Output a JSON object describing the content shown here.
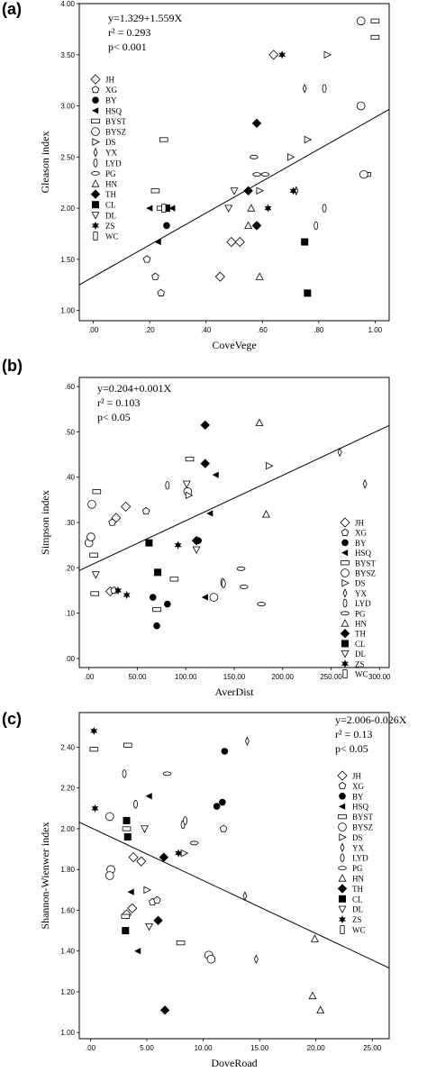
{
  "legend_labels": [
    "JH",
    "XG",
    "BY",
    "HSQ",
    "BYST",
    "BYSZ",
    "DS",
    "YX",
    "LYD",
    "PG",
    "HN",
    "TH",
    "CL",
    "DL",
    "ZS",
    "WC"
  ],
  "chart_data": [
    {
      "panel": "(a)",
      "type": "scatter",
      "xlabel": "CoveVege",
      "ylabel": "Gleason index",
      "xlim": [
        -0.05,
        1.05
      ],
      "ylim": [
        0.9,
        4.0
      ],
      "xticks": [
        0,
        0.2,
        0.4,
        0.6,
        0.8,
        1.0
      ],
      "xtick_labels": [
        ".00",
        ".20",
        ".40",
        ".60",
        ".80",
        "1.00"
      ],
      "yticks": [
        1.0,
        1.5,
        2.0,
        2.5,
        3.0,
        3.5,
        4.0
      ],
      "ytick_labels": [
        "1.00",
        "1.50",
        "2.00",
        "2.50",
        "3.00",
        "3.50",
        "4.00"
      ],
      "equation": [
        "y=1.329+1.559X",
        "r² = 0.293",
        "p< 0.001"
      ],
      "fit": {
        "intercept": 1.329,
        "slope": 1.559
      },
      "legend_position": "left",
      "points": [
        {
          "s": "JH",
          "x": 0.45,
          "y": 1.33
        },
        {
          "s": "JH",
          "x": 0.49,
          "y": 1.67
        },
        {
          "s": "JH",
          "x": 0.52,
          "y": 1.67
        },
        {
          "s": "JH",
          "x": 0.64,
          "y": 3.5
        },
        {
          "s": "XG",
          "x": 0.19,
          "y": 1.5
        },
        {
          "s": "XG",
          "x": 0.22,
          "y": 1.33
        },
        {
          "s": "XG",
          "x": 0.24,
          "y": 1.17
        },
        {
          "s": "BY",
          "x": 0.26,
          "y": 1.83
        },
        {
          "s": "BY",
          "x": 0.58,
          "y": 1.83
        },
        {
          "s": "HSQ",
          "x": 0.2,
          "y": 2.0
        },
        {
          "s": "HSQ",
          "x": 0.23,
          "y": 1.67
        },
        {
          "s": "HSQ",
          "x": 0.28,
          "y": 2.0
        },
        {
          "s": "BYST",
          "x": 0.22,
          "y": 2.17
        },
        {
          "s": "BYST",
          "x": 0.24,
          "y": 2.0
        },
        {
          "s": "BYST",
          "x": 0.25,
          "y": 2.67
        },
        {
          "s": "BYST",
          "x": 0.97,
          "y": 2.33
        },
        {
          "s": "BYST",
          "x": 1.0,
          "y": 3.67
        },
        {
          "s": "BYST",
          "x": 1.0,
          "y": 3.83
        },
        {
          "s": "BYSZ",
          "x": 0.95,
          "y": 3.83
        },
        {
          "s": "BYSZ",
          "x": 0.95,
          "y": 3.0
        },
        {
          "s": "BYSZ",
          "x": 0.96,
          "y": 2.33
        },
        {
          "s": "DS",
          "x": 0.59,
          "y": 2.17
        },
        {
          "s": "DS",
          "x": 0.7,
          "y": 2.5
        },
        {
          "s": "DS",
          "x": 0.76,
          "y": 2.67
        },
        {
          "s": "DS",
          "x": 0.83,
          "y": 3.5
        },
        {
          "s": "YX",
          "x": 0.72,
          "y": 2.17
        },
        {
          "s": "YX",
          "x": 0.75,
          "y": 3.17
        },
        {
          "s": "LYD",
          "x": 0.79,
          "y": 1.83
        },
        {
          "s": "LYD",
          "x": 0.82,
          "y": 2.0
        },
        {
          "s": "LYD",
          "x": 0.82,
          "y": 3.17
        },
        {
          "s": "PG",
          "x": 0.57,
          "y": 2.5
        },
        {
          "s": "PG",
          "x": 0.58,
          "y": 2.33
        },
        {
          "s": "PG",
          "x": 0.61,
          "y": 2.33
        },
        {
          "s": "HN",
          "x": 0.55,
          "y": 1.83
        },
        {
          "s": "HN",
          "x": 0.56,
          "y": 2.0
        },
        {
          "s": "HN",
          "x": 0.59,
          "y": 1.33
        },
        {
          "s": "TH",
          "x": 0.58,
          "y": 2.83
        },
        {
          "s": "TH",
          "x": 0.55,
          "y": 2.17
        },
        {
          "s": "TH",
          "x": 0.58,
          "y": 1.83
        },
        {
          "s": "CL",
          "x": 0.26,
          "y": 2.0
        },
        {
          "s": "CL",
          "x": 0.75,
          "y": 1.67
        },
        {
          "s": "CL",
          "x": 0.76,
          "y": 1.17
        },
        {
          "s": "DL",
          "x": 0.48,
          "y": 2.0
        },
        {
          "s": "DL",
          "x": 0.5,
          "y": 2.17
        },
        {
          "s": "ZS",
          "x": 0.67,
          "y": 3.5
        },
        {
          "s": "ZS",
          "x": 0.71,
          "y": 2.17
        },
        {
          "s": "ZS",
          "x": 0.62,
          "y": 2.0
        },
        {
          "s": "WC",
          "x": 0.25,
          "y": 2.0
        }
      ]
    },
    {
      "panel": "(b)",
      "type": "scatter",
      "xlabel": "AverDist",
      "ylabel": "Simpson index",
      "xlim": [
        -10,
        310
      ],
      "ylim": [
        -0.02,
        0.62
      ],
      "xticks": [
        0,
        50,
        100,
        150,
        200,
        250,
        300
      ],
      "xtick_labels": [
        ".00",
        "50.00",
        "100.00",
        "150.00",
        "200.00",
        "250.00",
        "300.00"
      ],
      "yticks": [
        0,
        0.1,
        0.2,
        0.3,
        0.4,
        0.5,
        0.6
      ],
      "ytick_labels": [
        ".00",
        ".10",
        ".20",
        ".30",
        ".40",
        ".50",
        ".60"
      ],
      "equation": [
        "y=0.204+0.001X",
        "r² = 0.103",
        "p< 0.05"
      ],
      "fit": {
        "intercept": 0.204,
        "slope": 0.001
      },
      "legend_position": "bottom-right",
      "points": [
        {
          "s": "JH",
          "x": 22,
          "y": 0.148
        },
        {
          "s": "JH",
          "x": 28,
          "y": 0.31
        },
        {
          "s": "JH",
          "x": 38,
          "y": 0.335
        },
        {
          "s": "XG",
          "x": 24,
          "y": 0.3
        },
        {
          "s": "XG",
          "x": 26,
          "y": 0.15
        },
        {
          "s": "XG",
          "x": 59,
          "y": 0.325
        },
        {
          "s": "BY",
          "x": 66,
          "y": 0.135
        },
        {
          "s": "BY",
          "x": 70,
          "y": 0.072
        },
        {
          "s": "BY",
          "x": 81,
          "y": 0.12
        },
        {
          "s": "BY",
          "x": 113,
          "y": 0.26
        },
        {
          "s": "HSQ",
          "x": 120,
          "y": 0.135
        },
        {
          "s": "HSQ",
          "x": 125,
          "y": 0.32
        },
        {
          "s": "HSQ",
          "x": 131,
          "y": 0.405
        },
        {
          "s": "BYST",
          "x": 5,
          "y": 0.228
        },
        {
          "s": "BYST",
          "x": 6,
          "y": 0.143
        },
        {
          "s": "BYST",
          "x": 8,
          "y": 0.368
        },
        {
          "s": "BYST",
          "x": 70,
          "y": 0.108
        },
        {
          "s": "BYST",
          "x": 88,
          "y": 0.175
        },
        {
          "s": "BYST",
          "x": 104,
          "y": 0.44
        },
        {
          "s": "BYSZ",
          "x": 0,
          "y": 0.255
        },
        {
          "s": "BYSZ",
          "x": 2,
          "y": 0.268
        },
        {
          "s": "BYSZ",
          "x": 3,
          "y": 0.34
        },
        {
          "s": "BYSZ",
          "x": 102,
          "y": 0.368
        },
        {
          "s": "BYSZ",
          "x": 129,
          "y": 0.135
        },
        {
          "s": "DS",
          "x": 103,
          "y": 0.36
        },
        {
          "s": "DS",
          "x": 186,
          "y": 0.425
        },
        {
          "s": "YX",
          "x": 259,
          "y": 0.455
        },
        {
          "s": "YX",
          "x": 285,
          "y": 0.385
        },
        {
          "s": "LYD",
          "x": 81,
          "y": 0.382
        },
        {
          "s": "LYD",
          "x": 138,
          "y": 0.168
        },
        {
          "s": "LYD",
          "x": 139,
          "y": 0.165
        },
        {
          "s": "PG",
          "x": 157,
          "y": 0.198
        },
        {
          "s": "PG",
          "x": 160,
          "y": 0.158
        },
        {
          "s": "PG",
          "x": 178,
          "y": 0.12
        },
        {
          "s": "HN",
          "x": 176,
          "y": 0.52
        },
        {
          "s": "HN",
          "x": 183,
          "y": 0.318
        },
        {
          "s": "TH",
          "x": 120,
          "y": 0.515
        },
        {
          "s": "TH",
          "x": 120,
          "y": 0.43
        },
        {
          "s": "TH",
          "x": 111,
          "y": 0.26
        },
        {
          "s": "CL",
          "x": 62,
          "y": 0.255
        },
        {
          "s": "CL",
          "x": 71,
          "y": 0.19
        },
        {
          "s": "DL",
          "x": 7,
          "y": 0.185
        },
        {
          "s": "DL",
          "x": 101,
          "y": 0.385
        },
        {
          "s": "DL",
          "x": 111,
          "y": 0.24
        },
        {
          "s": "ZS",
          "x": 30,
          "y": 0.15
        },
        {
          "s": "ZS",
          "x": 92,
          "y": 0.25
        },
        {
          "s": "ZS",
          "x": 39,
          "y": 0.14
        }
      ]
    },
    {
      "panel": "(c)",
      "type": "scatter",
      "xlabel": "DoveRoad",
      "ylabel": "Shannon-Wienwer index",
      "xlim": [
        -1,
        26.5
      ],
      "ylim": [
        0.97,
        2.57
      ],
      "xticks": [
        0,
        5,
        10,
        15,
        20,
        25
      ],
      "xtick_labels": [
        ".00",
        "5.00",
        "10.00",
        "15.00",
        "20.00",
        "25.00"
      ],
      "yticks": [
        1.0,
        1.2,
        1.4,
        1.6,
        1.8,
        2.0,
        2.2,
        2.4
      ],
      "ytick_labels": [
        "1.00",
        "1.20",
        "1.40",
        "1.60",
        "1.80",
        "2.00",
        "2.20",
        "2.40"
      ],
      "equation": [
        "y=2.006-0.026X",
        "r² = 0.13",
        "p< 0.05"
      ],
      "fit": {
        "intercept": 2.006,
        "slope": -0.026
      },
      "legend_position": "top-right",
      "points": [
        {
          "s": "JH",
          "x": 3.8,
          "y": 1.86
        },
        {
          "s": "JH",
          "x": 3.2,
          "y": 1.58
        },
        {
          "s": "JH",
          "x": 3.7,
          "y": 1.61
        },
        {
          "s": "JH",
          "x": 4.5,
          "y": 1.84
        },
        {
          "s": "XG",
          "x": 5.5,
          "y": 1.64
        },
        {
          "s": "XG",
          "x": 5.9,
          "y": 1.65
        },
        {
          "s": "XG",
          "x": 11.8,
          "y": 2.0
        },
        {
          "s": "BY",
          "x": 11.9,
          "y": 2.38
        },
        {
          "s": "BY",
          "x": 11.2,
          "y": 2.11
        },
        {
          "s": "BY",
          "x": 11.7,
          "y": 2.13
        },
        {
          "s": "HSQ",
          "x": 5.2,
          "y": 2.16
        },
        {
          "s": "HSQ",
          "x": 3.6,
          "y": 1.69
        },
        {
          "s": "HSQ",
          "x": 4.2,
          "y": 1.4
        },
        {
          "s": "BYST",
          "x": 0.3,
          "y": 2.39
        },
        {
          "s": "BYST",
          "x": 3.1,
          "y": 1.57
        },
        {
          "s": "BYST",
          "x": 3.3,
          "y": 2.41
        },
        {
          "s": "BYST",
          "x": 3.2,
          "y": 2.0
        },
        {
          "s": "BYST",
          "x": 8.0,
          "y": 1.44
        },
        {
          "s": "BYSZ",
          "x": 1.7,
          "y": 2.06
        },
        {
          "s": "BYSZ",
          "x": 1.8,
          "y": 1.8
        },
        {
          "s": "BYSZ",
          "x": 1.7,
          "y": 1.77
        },
        {
          "s": "BYSZ",
          "x": 10.5,
          "y": 1.38
        },
        {
          "s": "BYSZ",
          "x": 10.7,
          "y": 1.36
        },
        {
          "s": "DS",
          "x": 5.0,
          "y": 1.7
        },
        {
          "s": "DS",
          "x": 8.3,
          "y": 1.88
        },
        {
          "s": "YX",
          "x": 13.9,
          "y": 2.43
        },
        {
          "s": "YX",
          "x": 13.7,
          "y": 1.67
        },
        {
          "s": "YX",
          "x": 14.7,
          "y": 1.36
        },
        {
          "s": "LYD",
          "x": 3.0,
          "y": 2.27
        },
        {
          "s": "LYD",
          "x": 4.0,
          "y": 2.12
        },
        {
          "s": "LYD",
          "x": 8.2,
          "y": 2.02
        },
        {
          "s": "LYD",
          "x": 8.4,
          "y": 2.04
        },
        {
          "s": "PG",
          "x": 6.8,
          "y": 2.27
        },
        {
          "s": "PG",
          "x": 9.2,
          "y": 1.93
        },
        {
          "s": "HN",
          "x": 19.9,
          "y": 1.46
        },
        {
          "s": "HN",
          "x": 19.7,
          "y": 1.18
        },
        {
          "s": "HN",
          "x": 20.4,
          "y": 1.11
        },
        {
          "s": "TH",
          "x": 6.5,
          "y": 1.86
        },
        {
          "s": "TH",
          "x": 6.0,
          "y": 1.55
        },
        {
          "s": "TH",
          "x": 6.6,
          "y": 1.11
        },
        {
          "s": "CL",
          "x": 3.2,
          "y": 2.04
        },
        {
          "s": "CL",
          "x": 3.3,
          "y": 1.96
        },
        {
          "s": "CL",
          "x": 3.1,
          "y": 1.5
        },
        {
          "s": "DL",
          "x": 4.8,
          "y": 2.0
        },
        {
          "s": "DL",
          "x": 5.2,
          "y": 1.52
        },
        {
          "s": "ZS",
          "x": 0.3,
          "y": 2.48
        },
        {
          "s": "ZS",
          "x": 0.4,
          "y": 2.1
        },
        {
          "s": "ZS",
          "x": 7.8,
          "y": 1.88
        }
      ]
    }
  ]
}
